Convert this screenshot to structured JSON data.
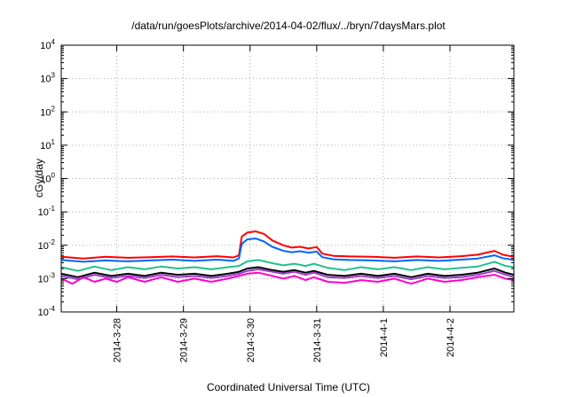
{
  "chart_data": {
    "type": "line",
    "title": "/data/run/goesPlots/archive/2014-04-02/flux/../bryn/7daysMars.plot",
    "xlabel": "Coordinated Universal Time (UTC)",
    "ylabel": "cGy/day",
    "y_scale": "log",
    "ylim": [
      0.0001,
      10000
    ],
    "y_ticks": [
      {
        "base": "10",
        "exp": "4"
      },
      {
        "base": "10",
        "exp": "3"
      },
      {
        "base": "10",
        "exp": "2"
      },
      {
        "base": "10",
        "exp": "1"
      },
      {
        "base": "10",
        "exp": "0"
      },
      {
        "base": "10",
        "exp": "-1"
      },
      {
        "base": "10",
        "exp": "-2"
      },
      {
        "base": "10",
        "exp": "-3"
      },
      {
        "base": "10",
        "exp": "-4"
      }
    ],
    "x_unit": "days",
    "xlim": [
      "2014-03-27 04:00",
      "2014-04-02 23:00"
    ],
    "x_ticks": [
      {
        "label": "2014-3-28",
        "date": "2014-03-28"
      },
      {
        "label": "2014-3-29",
        "date": "2014-03-29"
      },
      {
        "label": "2014-3-30",
        "date": "2014-03-30"
      },
      {
        "label": "2014-3-31",
        "date": "2014-03-31"
      },
      {
        "label": "2014-4-1",
        "date": "2014-04-01"
      },
      {
        "label": "2014-4-2",
        "date": "2014-04-02"
      }
    ],
    "grid": true,
    "series": [
      {
        "color": "#ff0000",
        "points": [
          [
            "2014-03-27 04:00",
            0.0045
          ],
          [
            "2014-03-27 12:00",
            0.004
          ],
          [
            "2014-03-27 20:00",
            0.0045
          ],
          [
            "2014-03-28 04:00",
            0.0042
          ],
          [
            "2014-03-28 12:00",
            0.0044
          ],
          [
            "2014-03-28 20:00",
            0.0046
          ],
          [
            "2014-03-29 04:00",
            0.0043
          ],
          [
            "2014-03-29 12:00",
            0.0047
          ],
          [
            "2014-03-29 18:00",
            0.0043
          ],
          [
            "2014-03-29 20:00",
            0.005
          ],
          [
            "2014-03-29 21:00",
            0.018
          ],
          [
            "2014-03-29 23:00",
            0.024
          ],
          [
            "2014-03-30 02:00",
            0.026
          ],
          [
            "2014-03-30 05:00",
            0.022
          ],
          [
            "2014-03-30 08:00",
            0.014
          ],
          [
            "2014-03-30 12:00",
            0.01
          ],
          [
            "2014-03-30 15:00",
            0.0085
          ],
          [
            "2014-03-30 18:00",
            0.009
          ],
          [
            "2014-03-30 21:00",
            0.008
          ],
          [
            "2014-03-31 00:00",
            0.0088
          ],
          [
            "2014-03-31 02:00",
            0.0056
          ],
          [
            "2014-03-31 06:00",
            0.0048
          ],
          [
            "2014-03-31 12:00",
            0.0046
          ],
          [
            "2014-03-31 20:00",
            0.0045
          ],
          [
            "2014-04-01 04:00",
            0.0042
          ],
          [
            "2014-04-01 12:00",
            0.0046
          ],
          [
            "2014-04-01 20:00",
            0.0043
          ],
          [
            "2014-04-02 04:00",
            0.0047
          ],
          [
            "2014-04-02 10:00",
            0.0052
          ],
          [
            "2014-04-02 16:00",
            0.0068
          ],
          [
            "2014-04-02 19:00",
            0.0052
          ],
          [
            "2014-04-02 23:00",
            0.0045
          ]
        ]
      },
      {
        "color": "#0066ff",
        "points": [
          [
            "2014-03-27 04:00",
            0.0036
          ],
          [
            "2014-03-27 12:00",
            0.0032
          ],
          [
            "2014-03-27 20:00",
            0.0035
          ],
          [
            "2014-03-28 04:00",
            0.0033
          ],
          [
            "2014-03-28 12:00",
            0.0035
          ],
          [
            "2014-03-28 20:00",
            0.0037
          ],
          [
            "2014-03-29 04:00",
            0.0034
          ],
          [
            "2014-03-29 12:00",
            0.0037
          ],
          [
            "2014-03-29 18:00",
            0.0034
          ],
          [
            "2014-03-29 20:00",
            0.004
          ],
          [
            "2014-03-29 21:00",
            0.011
          ],
          [
            "2014-03-29 23:00",
            0.015
          ],
          [
            "2014-03-30 02:00",
            0.016
          ],
          [
            "2014-03-30 05:00",
            0.013
          ],
          [
            "2014-03-30 08:00",
            0.009
          ],
          [
            "2014-03-30 12:00",
            0.0068
          ],
          [
            "2014-03-30 15:00",
            0.0062
          ],
          [
            "2014-03-30 18:00",
            0.0066
          ],
          [
            "2014-03-30 21:00",
            0.006
          ],
          [
            "2014-03-31 00:00",
            0.0064
          ],
          [
            "2014-03-31 02:00",
            0.0044
          ],
          [
            "2014-03-31 06:00",
            0.0038
          ],
          [
            "2014-03-31 12:00",
            0.0036
          ],
          [
            "2014-03-31 20:00",
            0.0035
          ],
          [
            "2014-04-01 04:00",
            0.0033
          ],
          [
            "2014-04-01 12:00",
            0.0036
          ],
          [
            "2014-04-01 20:00",
            0.0034
          ],
          [
            "2014-04-02 04:00",
            0.0037
          ],
          [
            "2014-04-02 10:00",
            0.004
          ],
          [
            "2014-04-02 16:00",
            0.005
          ],
          [
            "2014-04-02 19:00",
            0.0041
          ],
          [
            "2014-04-02 23:00",
            0.0036
          ]
        ]
      },
      {
        "color": "#22c08c",
        "points": [
          [
            "2014-03-27 04:00",
            0.0022
          ],
          [
            "2014-03-27 10:00",
            0.0017
          ],
          [
            "2014-03-27 16:00",
            0.0023
          ],
          [
            "2014-03-27 22:00",
            0.0018
          ],
          [
            "2014-03-28 04:00",
            0.0022
          ],
          [
            "2014-03-28 10:00",
            0.0019
          ],
          [
            "2014-03-28 16:00",
            0.0023
          ],
          [
            "2014-03-28 22:00",
            0.002
          ],
          [
            "2014-03-29 04:00",
            0.0022
          ],
          [
            "2014-03-29 10:00",
            0.0019
          ],
          [
            "2014-03-29 16:00",
            0.0022
          ],
          [
            "2014-03-29 20:00",
            0.0024
          ],
          [
            "2014-03-29 23:00",
            0.0033
          ],
          [
            "2014-03-30 03:00",
            0.0036
          ],
          [
            "2014-03-30 08:00",
            0.0029
          ],
          [
            "2014-03-30 12:00",
            0.0025
          ],
          [
            "2014-03-30 16:00",
            0.0028
          ],
          [
            "2014-03-30 20:00",
            0.0024
          ],
          [
            "2014-03-30 23:00",
            0.0028
          ],
          [
            "2014-03-31 04:00",
            0.0021
          ],
          [
            "2014-03-31 10:00",
            0.0018
          ],
          [
            "2014-03-31 16:00",
            0.0022
          ],
          [
            "2014-03-31 22:00",
            0.0019
          ],
          [
            "2014-04-01 04:00",
            0.0022
          ],
          [
            "2014-04-01 10:00",
            0.0018
          ],
          [
            "2014-04-01 16:00",
            0.0022
          ],
          [
            "2014-04-01 22:00",
            0.0019
          ],
          [
            "2014-04-02 04:00",
            0.0021
          ],
          [
            "2014-04-02 10:00",
            0.0023
          ],
          [
            "2014-04-02 16:00",
            0.0032
          ],
          [
            "2014-04-02 20:00",
            0.0024
          ],
          [
            "2014-04-02 23:00",
            0.0022
          ]
        ]
      },
      {
        "color": "#000000",
        "points": [
          [
            "2014-03-27 04:00",
            0.0014
          ],
          [
            "2014-03-27 10:00",
            0.0011
          ],
          [
            "2014-03-27 16:00",
            0.0015
          ],
          [
            "2014-03-27 22:00",
            0.0012
          ],
          [
            "2014-03-28 04:00",
            0.0014
          ],
          [
            "2014-03-28 10:00",
            0.0012
          ],
          [
            "2014-03-28 16:00",
            0.0015
          ],
          [
            "2014-03-28 22:00",
            0.0013
          ],
          [
            "2014-03-29 04:00",
            0.0014
          ],
          [
            "2014-03-29 10:00",
            0.0012
          ],
          [
            "2014-03-29 16:00",
            0.0014
          ],
          [
            "2014-03-29 20:00",
            0.0016
          ],
          [
            "2014-03-29 23:00",
            0.002
          ],
          [
            "2014-03-30 03:00",
            0.0022
          ],
          [
            "2014-03-30 08:00",
            0.0018
          ],
          [
            "2014-03-30 12:00",
            0.0016
          ],
          [
            "2014-03-30 16:00",
            0.0018
          ],
          [
            "2014-03-30 20:00",
            0.0015
          ],
          [
            "2014-03-30 23:00",
            0.0017
          ],
          [
            "2014-03-31 04:00",
            0.0013
          ],
          [
            "2014-03-31 10:00",
            0.0012
          ],
          [
            "2014-03-31 16:00",
            0.0014
          ],
          [
            "2014-03-31 22:00",
            0.0012
          ],
          [
            "2014-04-01 04:00",
            0.0014
          ],
          [
            "2014-04-01 10:00",
            0.0011
          ],
          [
            "2014-04-01 16:00",
            0.0014
          ],
          [
            "2014-04-01 22:00",
            0.0012
          ],
          [
            "2014-04-02 04:00",
            0.0013
          ],
          [
            "2014-04-02 10:00",
            0.0015
          ],
          [
            "2014-04-02 16:00",
            0.002
          ],
          [
            "2014-04-02 20:00",
            0.0015
          ],
          [
            "2014-04-02 23:00",
            0.0013
          ]
        ]
      },
      {
        "color": "#9b3ad1",
        "points": [
          [
            "2014-03-27 04:00",
            0.0012
          ],
          [
            "2014-03-27 10:00",
            0.00095
          ],
          [
            "2014-03-27 16:00",
            0.0013
          ],
          [
            "2014-03-27 22:00",
            0.00105
          ],
          [
            "2014-03-28 04:00",
            0.0012
          ],
          [
            "2014-03-28 10:00",
            0.00105
          ],
          [
            "2014-03-28 16:00",
            0.0013
          ],
          [
            "2014-03-28 22:00",
            0.0011
          ],
          [
            "2014-03-29 04:00",
            0.0012
          ],
          [
            "2014-03-29 10:00",
            0.00105
          ],
          [
            "2014-03-29 16:00",
            0.0012
          ],
          [
            "2014-03-29 20:00",
            0.0014
          ],
          [
            "2014-03-29 23:00",
            0.0017
          ],
          [
            "2014-03-30 03:00",
            0.0019
          ],
          [
            "2014-03-30 08:00",
            0.0016
          ],
          [
            "2014-03-30 12:00",
            0.0014
          ],
          [
            "2014-03-30 16:00",
            0.0016
          ],
          [
            "2014-03-30 20:00",
            0.0013
          ],
          [
            "2014-03-30 23:00",
            0.0015
          ],
          [
            "2014-03-31 04:00",
            0.0011
          ],
          [
            "2014-03-31 10:00",
            0.00105
          ],
          [
            "2014-03-31 16:00",
            0.0012
          ],
          [
            "2014-03-31 22:00",
            0.00105
          ],
          [
            "2014-04-01 04:00",
            0.0012
          ],
          [
            "2014-04-01 10:00",
            0.00095
          ],
          [
            "2014-04-01 16:00",
            0.0012
          ],
          [
            "2014-04-01 22:00",
            0.00105
          ],
          [
            "2014-04-02 04:00",
            0.0011
          ],
          [
            "2014-04-02 10:00",
            0.0013
          ],
          [
            "2014-04-02 16:00",
            0.0017
          ],
          [
            "2014-04-02 20:00",
            0.0013
          ],
          [
            "2014-04-02 23:00",
            0.0011
          ]
        ]
      },
      {
        "color": "#ff00cc",
        "points": [
          [
            "2014-03-27 04:00",
            0.001
          ],
          [
            "2014-03-27 08:00",
            0.0007
          ],
          [
            "2014-03-27 12:00",
            0.0011
          ],
          [
            "2014-03-27 16:00",
            0.0008
          ],
          [
            "2014-03-27 20:00",
            0.001
          ],
          [
            "2014-03-28 00:00",
            0.0008
          ],
          [
            "2014-03-28 04:00",
            0.0011
          ],
          [
            "2014-03-28 10:00",
            0.0008
          ],
          [
            "2014-03-28 16:00",
            0.0011
          ],
          [
            "2014-03-28 22:00",
            0.0008
          ],
          [
            "2014-03-29 04:00",
            0.001
          ],
          [
            "2014-03-29 10:00",
            0.0008
          ],
          [
            "2014-03-29 16:00",
            0.001
          ],
          [
            "2014-03-29 20:00",
            0.0012
          ],
          [
            "2014-03-29 23:00",
            0.0014
          ],
          [
            "2014-03-30 03:00",
            0.0015
          ],
          [
            "2014-03-30 08:00",
            0.0012
          ],
          [
            "2014-03-30 12:00",
            0.001
          ],
          [
            "2014-03-30 16:00",
            0.0012
          ],
          [
            "2014-03-30 20:00",
            0.0009
          ],
          [
            "2014-03-30 23:00",
            0.0011
          ],
          [
            "2014-03-31 04:00",
            0.0008
          ],
          [
            "2014-03-31 10:00",
            0.00075
          ],
          [
            "2014-03-31 16:00",
            0.0009
          ],
          [
            "2014-03-31 22:00",
            0.0008
          ],
          [
            "2014-04-01 04:00",
            0.001
          ],
          [
            "2014-04-01 10:00",
            0.0007
          ],
          [
            "2014-04-01 16:00",
            0.001
          ],
          [
            "2014-04-01 22:00",
            0.0008
          ],
          [
            "2014-04-02 04:00",
            0.0009
          ],
          [
            "2014-04-02 10:00",
            0.0011
          ],
          [
            "2014-04-02 16:00",
            0.0013
          ],
          [
            "2014-04-02 20:00",
            0.001
          ],
          [
            "2014-04-02 23:00",
            0.0009
          ]
        ]
      }
    ]
  }
}
